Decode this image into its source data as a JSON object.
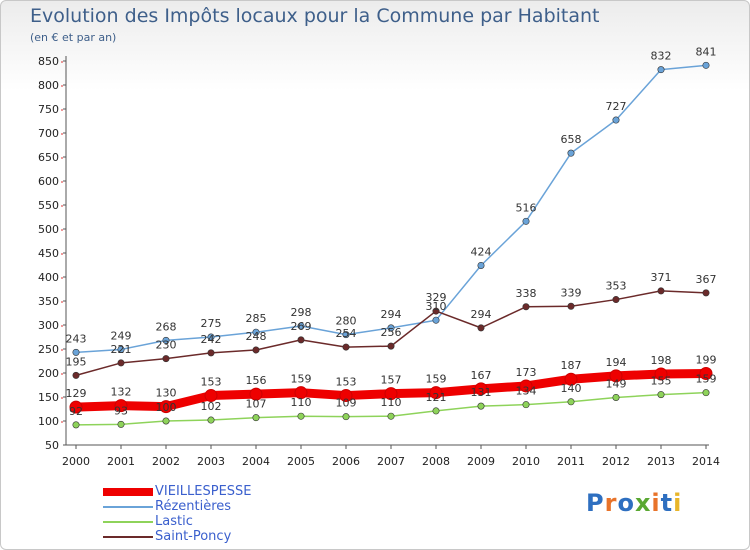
{
  "header": {
    "title": "Evolution des Impôts locaux pour la Commune par Habitant",
    "subtitle": "(en € et par an)"
  },
  "logo": {
    "text": "Proxiti",
    "letter_colors": [
      "#2e6fc0",
      "#e8732a",
      "#2e6fc0",
      "#5aa832",
      "#e8732a",
      "#2e6fc0",
      "#e8b52a"
    ]
  },
  "chart_data": {
    "type": "line",
    "x": [
      2000,
      2001,
      2002,
      2003,
      2004,
      2005,
      2006,
      2007,
      2008,
      2009,
      2010,
      2011,
      2012,
      2013,
      2014
    ],
    "ylim": [
      50,
      850
    ],
    "yticks": [
      50,
      100,
      150,
      200,
      250,
      300,
      350,
      400,
      450,
      500,
      550,
      600,
      650,
      700,
      750,
      800,
      850
    ],
    "grid": false,
    "legend_position": "bottom-left",
    "series": [
      {
        "name": "VIEILLESPESSE",
        "color": "#ee0000",
        "values": [
          129,
          132,
          130,
          153,
          156,
          159,
          153,
          157,
          159,
          167,
          173,
          187,
          194,
          198,
          199
        ]
      },
      {
        "name": "Rézentières",
        "color": "#6aa3d8",
        "values": [
          243,
          249,
          268,
          275,
          285,
          298,
          280,
          294,
          310,
          424,
          516,
          658,
          727,
          832,
          841
        ]
      },
      {
        "name": "Lastic",
        "color": "#8ed35a",
        "values": [
          92,
          93,
          100,
          102,
          107,
          110,
          109,
          110,
          121,
          131,
          134,
          140,
          149,
          155,
          159
        ]
      },
      {
        "name": "Saint-Poncy",
        "color": "#6b2a2a",
        "values": [
          195,
          221,
          230,
          242,
          248,
          269,
          254,
          256,
          329,
          294,
          338,
          339,
          353,
          371,
          367
        ]
      }
    ]
  }
}
